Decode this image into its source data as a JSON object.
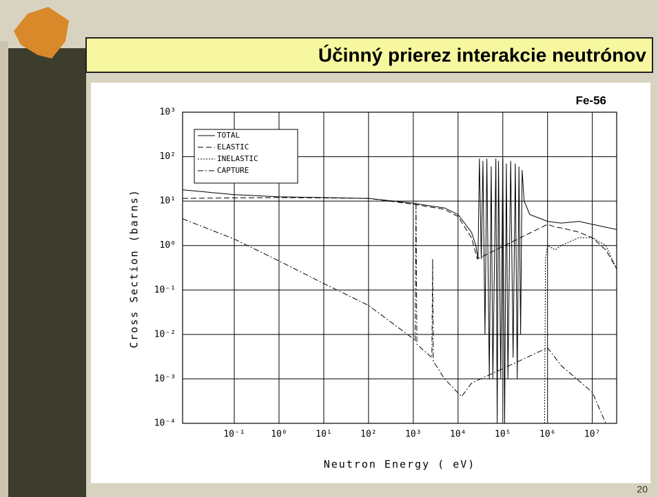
{
  "slide": {
    "title": "Účinný prierez interakcie neutrónov",
    "page_number": "20"
  },
  "chart_data": {
    "type": "line",
    "title": "Fe-56",
    "xlabel": "Neutron Energy ( eV)",
    "ylabel": "Cross Section (barns)",
    "xscale": "log",
    "yscale": "log",
    "grid": true,
    "legend": "upper left",
    "xlim": [
      0.007,
      35000000
    ],
    "ylim": [
      0.0001,
      1000
    ],
    "xticks": [
      {
        "value": 0.1,
        "label": "10⁻¹"
      },
      {
        "value": 1,
        "label": "10⁰"
      },
      {
        "value": 10,
        "label": "10¹"
      },
      {
        "value": 100,
        "label": "10²"
      },
      {
        "value": 1000,
        "label": "10³"
      },
      {
        "value": 10000,
        "label": "10⁴"
      },
      {
        "value": 100000,
        "label": "10⁵"
      },
      {
        "value": 1000000,
        "label": "10⁶"
      },
      {
        "value": 10000000,
        "label": "10⁷"
      }
    ],
    "yticks": [
      {
        "value": 0.0001,
        "label": "10⁻⁴"
      },
      {
        "value": 0.001,
        "label": "10⁻³"
      },
      {
        "value": 0.01,
        "label": "10⁻²"
      },
      {
        "value": 0.1,
        "label": "10⁻¹"
      },
      {
        "value": 1,
        "label": "10⁰"
      },
      {
        "value": 10,
        "label": "10¹"
      },
      {
        "value": 100,
        "label": "10²"
      },
      {
        "value": 1000,
        "label": "10³"
      }
    ],
    "series": [
      {
        "name": "TOTAL",
        "color": "#000000",
        "line_style": "solid",
        "x": [
          0.007,
          0.1,
          1,
          10,
          100,
          1000,
          2000,
          5000,
          10000,
          20000,
          25000,
          28000,
          30000,
          33000,
          36000,
          40000,
          44000,
          50000,
          55000,
          60000,
          70000,
          75000,
          80000,
          90000,
          100000,
          110000,
          120000,
          130000,
          150000,
          170000,
          190000,
          210000,
          230000,
          250000,
          270000,
          300000,
          400000,
          1000000,
          2000000,
          5000000,
          10000000,
          35000000
        ],
        "values": [
          18,
          14,
          12.5,
          12,
          11.5,
          9,
          8,
          7,
          5,
          2,
          1,
          0.5,
          90,
          0.5,
          80,
          0.01,
          90,
          0.001,
          60,
          0.001,
          90,
          0.0001,
          80,
          0.001,
          90,
          0.0001,
          70,
          0.001,
          80,
          0.003,
          70,
          0.001,
          60,
          0.01,
          50,
          10,
          5,
          3.5,
          3.2,
          3.5,
          3,
          2.3
        ]
      },
      {
        "name": "ELASTIC",
        "color": "#000000",
        "line_style": "dashed",
        "x": [
          0.007,
          0.1,
          1,
          10,
          100,
          1000,
          5000,
          10000,
          20000,
          27000,
          1000000,
          1500000,
          2000000,
          5000000,
          10000000,
          20000000,
          35000000
        ],
        "values": [
          11.5,
          11.8,
          12,
          11.8,
          11.5,
          8.5,
          6.5,
          4.5,
          1.5,
          0.5,
          3,
          2.6,
          2.5,
          2,
          1.5,
          0.8,
          0.3
        ]
      },
      {
        "name": "INELASTIC",
        "color": "#000000",
        "line_style": "dotted",
        "x": [
          860000,
          900000,
          1000000,
          1500000,
          2000000,
          5000000,
          10000000,
          20000000,
          35000000
        ],
        "values": [
          0.0001,
          0.5,
          1,
          0.8,
          1,
          1.5,
          1.5,
          1,
          0.3
        ]
      },
      {
        "name": "CAPTURE",
        "color": "#000000",
        "line_style": "dashdot",
        "x": [
          0.007,
          0.1,
          1,
          10,
          100,
          1000,
          1100,
          1150,
          1200,
          2600,
          2700,
          2800,
          5000,
          12000,
          20000,
          1000000,
          2000000,
          10000000,
          20000000
        ],
        "values": [
          4,
          1.4,
          0.45,
          0.14,
          0.045,
          0.008,
          0.007,
          10,
          0.006,
          0.003,
          0.5,
          0.0025,
          0.001,
          0.0004,
          0.0008,
          0.005,
          0.002,
          0.0005,
          0.0001
        ]
      }
    ]
  }
}
